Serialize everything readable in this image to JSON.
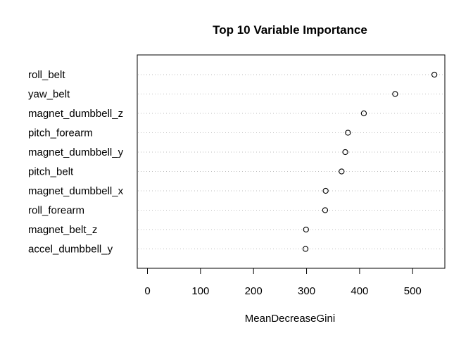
{
  "chart_data": {
    "type": "scatter",
    "subtype": "dotchart",
    "title": "Top 10 Variable Importance",
    "xlabel": "MeanDecreaseGini",
    "ylabel": "",
    "xlim": [
      0,
      550
    ],
    "xticks": [
      0,
      100,
      200,
      300,
      400,
      500
    ],
    "grid": "dotted horizontal",
    "categories": [
      "roll_belt",
      "yaw_belt",
      "magnet_dumbbell_z",
      "pitch_forearm",
      "magnet_dumbbell_y",
      "pitch_belt",
      "magnet_dumbbell_x",
      "roll_forearm",
      "magnet_belt_z",
      "accel_dumbbell_y"
    ],
    "values": [
      541,
      467,
      408,
      378,
      373,
      366,
      336,
      335,
      299,
      298
    ],
    "colors": {
      "points": "#000000",
      "grid": "#bebebe",
      "frame": "#000000"
    }
  }
}
